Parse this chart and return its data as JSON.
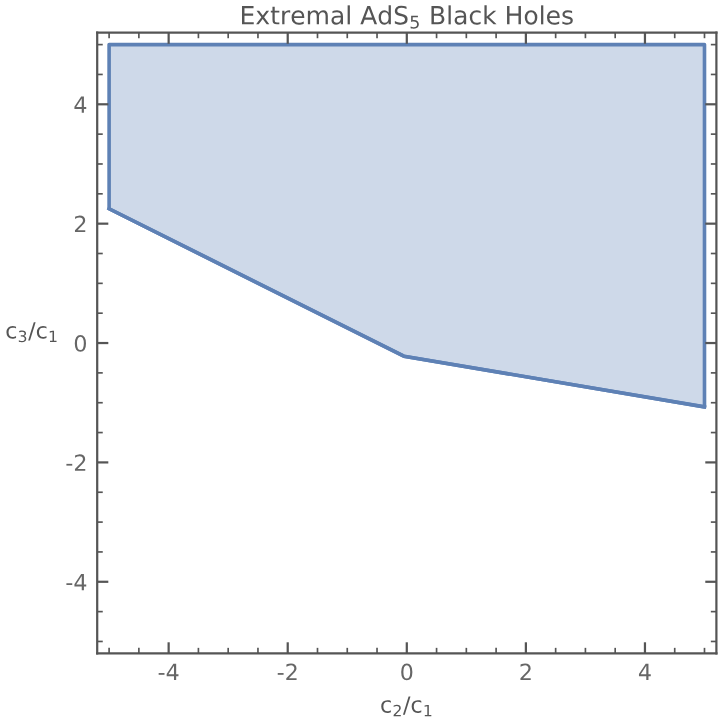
{
  "chart_data": {
    "type": "line",
    "title": "Extremal AdS$_{5}$ Black Holes",
    "xlabel": "c$_{2}$/c$_{1}$",
    "ylabel": "c$_{3}$/c$_{1}$",
    "series": [
      {
        "color": "#5e81b5",
        "x": [
          -5,
          -0.05,
          5
        ],
        "values": [
          2.25,
          -0.22,
          -1.07
        ],
        "lower": [
          2.25,
          -0.22,
          -1.07
        ],
        "upper": [
          5,
          5,
          5
        ]
      }
    ],
    "xlim": [
      -5.2,
      5.2
    ],
    "ylim": [
      -5.2,
      5.2
    ],
    "xticks": [
      -4,
      -2,
      0,
      2,
      4
    ],
    "yticks": [
      -4,
      -2,
      0,
      2,
      4
    ],
    "grid": false,
    "legend": false,
    "line_style": "solid",
    "marker": "none"
  }
}
